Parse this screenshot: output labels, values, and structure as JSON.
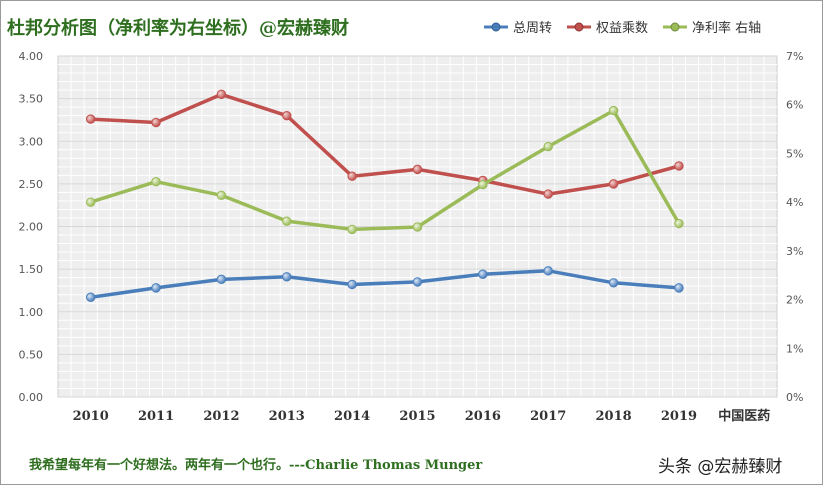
{
  "title": "杜邦分析图（净利率为右坐标）@宏赫臻财",
  "quote": "我希望每年有一个好想法。两年有一个也行。---Charlie Thomas  Munger",
  "watermark": "头条 @宏赫臻财",
  "colors": {
    "title": "#2e6e1f",
    "series": [
      "#4a7ebb",
      "#c0504d",
      "#9bbb59"
    ]
  },
  "chart_data": {
    "type": "line",
    "categories": [
      "2010",
      "2011",
      "2012",
      "2013",
      "2014",
      "2015",
      "2016",
      "2017",
      "2018",
      "2019",
      "中国医药"
    ],
    "y_left": {
      "ticks": [
        "0.00",
        "0.50",
        "1.00",
        "1.50",
        "2.00",
        "2.50",
        "3.00",
        "3.50",
        "4.00"
      ],
      "lim": [
        0,
        4
      ]
    },
    "y_right": {
      "ticks": [
        "0%",
        "1%",
        "2%",
        "3%",
        "4%",
        "5%",
        "6%",
        "7%"
      ],
      "lim": [
        0,
        7
      ]
    },
    "legend_position": "top-right",
    "series": [
      {
        "name": "总周转",
        "axis": "left",
        "values": [
          1.17,
          1.28,
          1.38,
          1.41,
          1.32,
          1.35,
          1.44,
          1.48,
          1.34,
          1.28,
          null
        ]
      },
      {
        "name": "权益乘数",
        "axis": "left",
        "values": [
          3.26,
          3.22,
          3.55,
          3.3,
          2.59,
          2.67,
          2.54,
          2.38,
          2.5,
          2.71,
          null
        ]
      },
      {
        "name": "净利率 右轴",
        "axis": "right",
        "values": [
          4.0,
          4.42,
          4.14,
          3.61,
          3.44,
          3.49,
          4.36,
          5.14,
          5.88,
          3.56,
          null
        ]
      }
    ]
  }
}
